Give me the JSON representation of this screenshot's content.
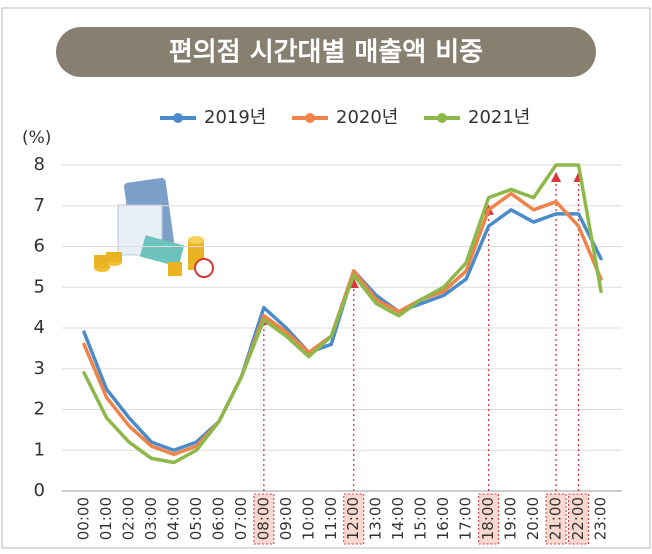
{
  "chart_data": {
    "type": "line",
    "title": "편의점 시간대별 매출액 비중",
    "y_unit_label": "(%)",
    "categories": [
      "00:00",
      "01:00",
      "02:00",
      "03:00",
      "04:00",
      "05:00",
      "06:00",
      "07:00",
      "08:00",
      "09:00",
      "10:00",
      "11:00",
      "12:00",
      "13:00",
      "14:00",
      "15:00",
      "16:00",
      "17:00",
      "18:00",
      "19:00",
      "20:00",
      "21:00",
      "22:00",
      "23:00"
    ],
    "series": [
      {
        "name": "2019년",
        "color": "#4a8cc9",
        "values": [
          3.9,
          2.5,
          1.8,
          1.2,
          1.0,
          1.2,
          1.7,
          2.8,
          4.5,
          4.0,
          3.4,
          3.6,
          5.4,
          4.8,
          4.4,
          4.6,
          4.8,
          5.2,
          6.5,
          6.9,
          6.6,
          6.8,
          6.8,
          5.7
        ]
      },
      {
        "name": "2020년",
        "color": "#f0834a",
        "values": [
          3.6,
          2.3,
          1.6,
          1.1,
          0.9,
          1.1,
          1.7,
          2.8,
          4.3,
          3.9,
          3.4,
          3.8,
          5.4,
          4.7,
          4.4,
          4.7,
          4.9,
          5.4,
          6.9,
          7.3,
          6.9,
          7.1,
          6.5,
          5.2
        ]
      },
      {
        "name": "2021년",
        "color": "#8db84a",
        "values": [
          2.9,
          1.8,
          1.2,
          0.8,
          0.7,
          1.0,
          1.7,
          2.8,
          4.2,
          3.8,
          3.3,
          3.8,
          5.3,
          4.6,
          4.3,
          4.7,
          5.0,
          5.6,
          7.2,
          7.4,
          7.2,
          8.0,
          8.0,
          4.9
        ]
      }
    ],
    "highlights": [
      8,
      12,
      18,
      21,
      22
    ],
    "ylim": [
      0,
      8
    ],
    "yticks": [
      0,
      1,
      2,
      3,
      4,
      5,
      6,
      7,
      8
    ],
    "grid": true
  }
}
